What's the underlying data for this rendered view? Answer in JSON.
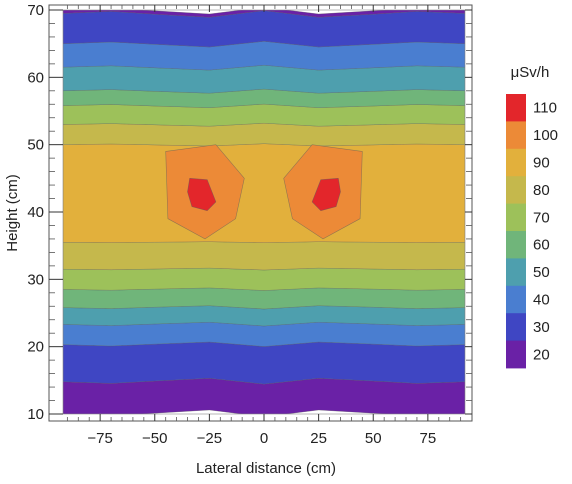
{
  "chart_data": {
    "type": "contour",
    "title": "",
    "xlabel": "Lateral distance (cm)",
    "ylabel": "Height (cm)",
    "xlim": [
      -92,
      92
    ],
    "ylim": [
      10,
      70
    ],
    "xticks": [
      -75,
      -50,
      -25,
      0,
      25,
      50,
      75
    ],
    "xtick_labels": [
      "−75",
      "−50",
      "−25",
      "0",
      "25",
      "50",
      "75"
    ],
    "yticks": [
      10,
      20,
      30,
      40,
      50,
      60,
      70
    ],
    "colorbar": {
      "title": "μSv/h",
      "levels": [
        110,
        100,
        90,
        80,
        70,
        60,
        50,
        40,
        30,
        20
      ],
      "colors": [
        "#e3262b",
        "#ec8a37",
        "#e2b03c",
        "#c5b84c",
        "#9dc15a",
        "#70b57a",
        "#4e9fae",
        "#4a7ed0",
        "#3f46c3",
        "#6a21a6"
      ]
    },
    "colors": {
      "lt20": "#6a21a6",
      "20-30": "#3f46c3",
      "30-40": "#4a7ed0",
      "40-50": "#4e9fae",
      "50-60": "#70b57a",
      "60-70": "#9dc15a",
      "70-80": "#c5b84c",
      "80-90": "#e2b03c",
      "90-100": "#ec8a37",
      "100-110": "#e3262b"
    },
    "bands": [
      {
        "level": "lt20",
        "y_low": 10,
        "y_high": 14.8
      },
      {
        "level": "20-30",
        "y_low": 14.8,
        "y_high": 20.3
      },
      {
        "level": "30-40",
        "y_low": 20.3,
        "y_high": 23.3
      },
      {
        "level": "40-50",
        "y_low": 23.3,
        "y_high": 25.8
      },
      {
        "level": "50-60",
        "y_low": 25.8,
        "y_high": 28.5
      },
      {
        "level": "60-70",
        "y_low": 28.5,
        "y_high": 31.5
      },
      {
        "level": "70-80",
        "y_low": 31.5,
        "y_high": 35.5
      },
      {
        "level": "80-90",
        "y_low": 35.5,
        "y_high": 50
      },
      {
        "level": "70-80",
        "y_low": 50,
        "y_high": 53
      },
      {
        "level": "60-70",
        "y_low": 53,
        "y_high": 55.8
      },
      {
        "level": "50-60",
        "y_low": 55.8,
        "y_high": 58
      },
      {
        "level": "40-50",
        "y_low": 58,
        "y_high": 61.5
      },
      {
        "level": "30-40",
        "y_low": 61.5,
        "y_high": 65
      },
      {
        "level": "20-30",
        "y_low": 65,
        "y_high": 69.5
      },
      {
        "level": "lt20",
        "y_low": 69.5,
        "y_high": 70
      }
    ],
    "hotspots": [
      {
        "level": "90-100",
        "x_center": -26,
        "y_center": 43
      },
      {
        "level": "100-110",
        "x_center": -28,
        "y_center": 43
      },
      {
        "level": "90-100",
        "x_center": 26,
        "y_center": 43
      },
      {
        "level": "100-110",
        "x_center": 28,
        "y_center": 43
      }
    ]
  }
}
